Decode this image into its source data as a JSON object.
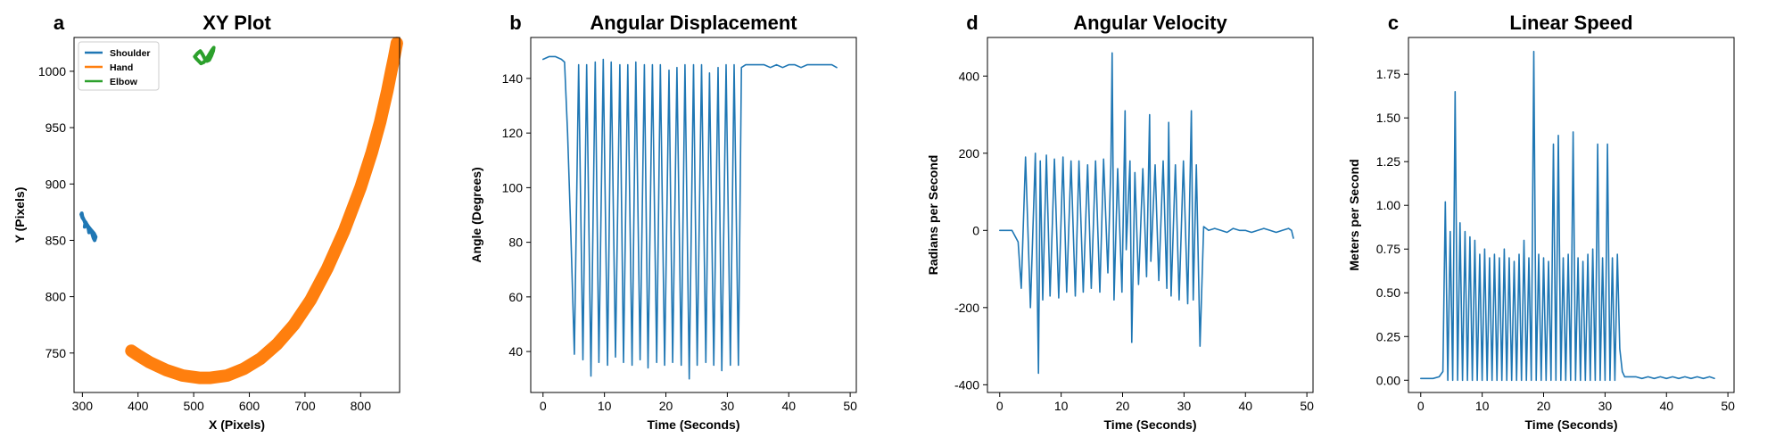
{
  "chart_data": [
    {
      "panel": "a",
      "type": "scatter",
      "title": "XY Plot",
      "xlabel": "X (Pixels)",
      "ylabel": "Y (Pixels)",
      "xlim": [
        285,
        870
      ],
      "ylim": [
        715,
        1030
      ],
      "xticks": [
        300,
        400,
        500,
        600,
        700,
        800
      ],
      "yticks": [
        750,
        800,
        850,
        900,
        950,
        1000
      ],
      "legend_position": "top-left",
      "series": [
        {
          "name": "Shoulder",
          "color": "#1f77b4",
          "x": [
            298,
            300,
            303,
            305,
            304,
            306,
            309,
            311,
            312,
            314,
            317,
            318,
            320,
            322,
            324,
            321,
            316,
            311,
            307,
            303,
            300,
            299
          ],
          "y": [
            873,
            870,
            868,
            865,
            862,
            866,
            863,
            860,
            857,
            860,
            857,
            855,
            852,
            850,
            853,
            856,
            859,
            862,
            865,
            868,
            871,
            874
          ]
        },
        {
          "name": "Hand",
          "color": "#ff7f0e",
          "x": [
            388,
            400,
            420,
            450,
            480,
            510,
            530,
            560,
            590,
            620,
            650,
            680,
            710,
            740,
            770,
            800,
            820,
            835,
            848,
            855,
            860,
            865
          ],
          "y": [
            752,
            748,
            742,
            735,
            730,
            728,
            728,
            730,
            736,
            745,
            758,
            775,
            797,
            825,
            858,
            897,
            928,
            955,
            983,
            1000,
            1012,
            1025
          ]
        },
        {
          "name": "Elbow",
          "color": "#2ca02c",
          "x": [
            502,
            507,
            512,
            516,
            520,
            524,
            528,
            532,
            535,
            536,
            533,
            528,
            523,
            518,
            513,
            509,
            505,
            502
          ],
          "y": [
            1013,
            1016,
            1018,
            1015,
            1011,
            1009,
            1010,
            1014,
            1018,
            1021,
            1019,
            1015,
            1011,
            1008,
            1007,
            1009,
            1011,
            1013
          ]
        }
      ]
    },
    {
      "panel": "b",
      "type": "line",
      "title": "Angular Displacement",
      "xlabel": "Time (Seconds)",
      "ylabel": "Angle (Degrees)",
      "xlim": [
        -2,
        51
      ],
      "ylim": [
        25,
        155
      ],
      "xticks": [
        0,
        10,
        20,
        30,
        40,
        50
      ],
      "yticks": [
        40,
        60,
        80,
        100,
        120,
        140
      ],
      "series": [
        {
          "name": "",
          "color": "#1f77b4",
          "x": [
            0,
            1,
            2,
            3,
            3.5,
            4,
            4.5,
            5.1,
            5.8,
            6.5,
            7.1,
            7.8,
            8.5,
            9.1,
            9.8,
            10.5,
            11.1,
            11.8,
            12.5,
            13.1,
            13.8,
            14.5,
            15.1,
            15.8,
            16.5,
            17.1,
            17.8,
            18.5,
            19.1,
            19.8,
            20.5,
            21.1,
            21.8,
            22.5,
            23.1,
            23.8,
            24.5,
            25.1,
            25.8,
            26.5,
            27.1,
            27.8,
            28.5,
            29.1,
            29.8,
            30.5,
            31.1,
            31.8,
            32.3,
            33,
            34,
            35,
            36,
            37,
            38,
            39,
            40,
            41,
            42,
            43,
            44,
            45,
            46,
            47,
            47.8
          ],
          "y": [
            147,
            148,
            148,
            147,
            146,
            120,
            85,
            39,
            145,
            37,
            145,
            31,
            146,
            36,
            147,
            35,
            146,
            38,
            145,
            36,
            145,
            35,
            146,
            37,
            145,
            34,
            145,
            36,
            145,
            35,
            143,
            36,
            144,
            35,
            145,
            30,
            145,
            35,
            145,
            36,
            142,
            35,
            144,
            33,
            145,
            35,
            145,
            35,
            144,
            145,
            145,
            145,
            145,
            144,
            145,
            144,
            145,
            145,
            144,
            145,
            145,
            145,
            145,
            145,
            144
          ]
        }
      ]
    },
    {
      "panel": "d",
      "type": "line",
      "title": "Angular Velocity",
      "xlabel": "Time (Seconds)",
      "ylabel": "Radians per Second",
      "xlim": [
        -2,
        51
      ],
      "ylim": [
        -420,
        500
      ],
      "xticks": [
        0,
        10,
        20,
        30,
        40,
        50
      ],
      "yticks": [
        -400,
        -200,
        0,
        200,
        400
      ],
      "series": [
        {
          "name": "",
          "color": "#1f77b4",
          "x": [
            0,
            1,
            2,
            3,
            3.5,
            4.2,
            5,
            5.8,
            6.3,
            6.6,
            7,
            7.6,
            8.2,
            8.9,
            9.6,
            10.3,
            10.9,
            11.6,
            12.3,
            12.9,
            13.6,
            14.3,
            14.9,
            15.6,
            16.3,
            16.9,
            17.6,
            18.1,
            18.3,
            18.6,
            19.2,
            19.9,
            20.4,
            20.6,
            21.2,
            21.5,
            22,
            22.6,
            23.3,
            23.9,
            24.4,
            24.6,
            25.3,
            25.9,
            26.6,
            27.2,
            27.5,
            27.9,
            28.6,
            29.2,
            29.9,
            30.6,
            31.2,
            31.5,
            32,
            32.6,
            33.2,
            34,
            35,
            36,
            37,
            38,
            39,
            40,
            41,
            42,
            43,
            44,
            45,
            46,
            47,
            47.5,
            47.8
          ],
          "y": [
            0,
            0,
            0,
            -30,
            -150,
            190,
            -200,
            200,
            -370,
            180,
            -180,
            195,
            -170,
            185,
            -175,
            190,
            -160,
            180,
            -170,
            180,
            -160,
            170,
            -150,
            180,
            -160,
            185,
            -110,
            170,
            460,
            -180,
            160,
            -160,
            310,
            -50,
            180,
            -290,
            150,
            -140,
            160,
            -120,
            300,
            -80,
            170,
            -130,
            180,
            -150,
            280,
            -170,
            170,
            -180,
            180,
            -190,
            310,
            -180,
            170,
            -300,
            10,
            0,
            5,
            0,
            -5,
            5,
            0,
            0,
            -5,
            0,
            5,
            0,
            -5,
            0,
            5,
            0,
            -20
          ]
        }
      ]
    },
    {
      "panel": "c",
      "type": "line",
      "title": "Linear Speed",
      "xlabel": "Time (Seconds)",
      "ylabel": "Meters per Second",
      "xlim": [
        -2,
        51
      ],
      "ylim": [
        -0.07,
        1.96
      ],
      "xticks": [
        0,
        10,
        20,
        30,
        40,
        50
      ],
      "yticks": [
        0.0,
        0.25,
        0.5,
        0.75,
        1.0,
        1.25,
        1.5,
        1.75
      ],
      "ytick_labels": [
        "0.00",
        "0.25",
        "0.50",
        "0.75",
        "1.00",
        "1.25",
        "1.50",
        "1.75"
      ],
      "series": [
        {
          "name": "",
          "color": "#1f77b4",
          "x": [
            0,
            1,
            2,
            3,
            3.6,
            4,
            4.4,
            4.8,
            5.2,
            5.6,
            6,
            6.4,
            6.8,
            7.2,
            7.6,
            8,
            8.4,
            8.8,
            9.2,
            9.6,
            10,
            10.4,
            10.8,
            11.2,
            11.6,
            12,
            12.4,
            12.8,
            13.2,
            13.6,
            14,
            14.4,
            14.8,
            15.2,
            15.6,
            16,
            16.4,
            16.8,
            17.2,
            17.6,
            18,
            18.4,
            18.8,
            19.2,
            19.6,
            20,
            20.4,
            20.8,
            21.2,
            21.6,
            22,
            22.4,
            22.8,
            23.2,
            23.6,
            24,
            24.4,
            24.8,
            25.2,
            25.6,
            26,
            26.4,
            26.8,
            27.2,
            27.6,
            28,
            28.4,
            28.8,
            29.2,
            29.6,
            30,
            30.4,
            30.8,
            31.2,
            31.6,
            32,
            32.4,
            32.8,
            33.2,
            34,
            35,
            36,
            37,
            38,
            39,
            40,
            41,
            42,
            43,
            44,
            45,
            46,
            47,
            47.8
          ],
          "y": [
            0.01,
            0.01,
            0.01,
            0.02,
            0.05,
            1.02,
            0.0,
            0.85,
            0.0,
            1.65,
            0.0,
            0.9,
            0.0,
            0.85,
            0.0,
            0.82,
            0.0,
            0.8,
            0.0,
            0.72,
            0.0,
            0.75,
            0.0,
            0.7,
            0.0,
            0.72,
            0.0,
            0.7,
            0.0,
            0.75,
            0.0,
            0.7,
            0.0,
            0.68,
            0.0,
            0.72,
            0.0,
            0.8,
            0.0,
            0.7,
            0.0,
            1.88,
            0.0,
            0.72,
            0.0,
            0.7,
            0.0,
            0.68,
            0.0,
            1.35,
            0.0,
            1.4,
            0.0,
            0.7,
            0.0,
            0.72,
            0.0,
            1.42,
            0.0,
            0.7,
            0.0,
            0.68,
            0.0,
            0.72,
            0.0,
            0.75,
            0.0,
            1.35,
            0.0,
            0.7,
            0.0,
            1.35,
            0.0,
            0.7,
            0.0,
            0.72,
            0.18,
            0.05,
            0.02,
            0.02,
            0.02,
            0.01,
            0.02,
            0.01,
            0.02,
            0.01,
            0.02,
            0.01,
            0.02,
            0.01,
            0.02,
            0.01,
            0.02,
            0.01
          ]
        }
      ]
    }
  ]
}
